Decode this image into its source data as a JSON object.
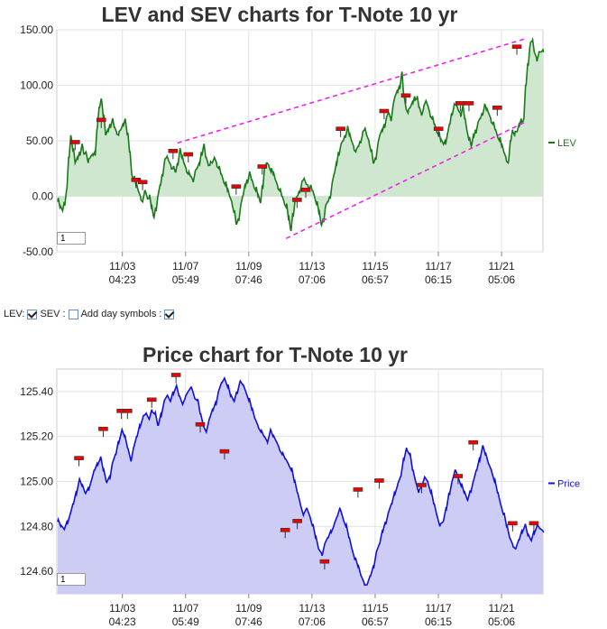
{
  "controls": {
    "lev_label": "LEV:",
    "sev_label": "SEV :",
    "add_day_label": "Add day symbols :",
    "lev_checked": true,
    "sev_checked": false,
    "add_day_checked": true
  },
  "chart_data": [
    {
      "type": "area",
      "title": "LEV and SEV charts for T-Note 10 yr",
      "ylim": [
        -50,
        150
      ],
      "yticks": [
        "-50.00",
        "0.00",
        "50.00",
        "100.00",
        "150.00"
      ],
      "xticks": [
        {
          "date": "11/03",
          "time": "04:23"
        },
        {
          "date": "11/07",
          "time": "05:49"
        },
        {
          "date": "11/09",
          "time": "07:46"
        },
        {
          "date": "11/13",
          "time": "07:06"
        },
        {
          "date": "11/15",
          "time": "06:57"
        },
        {
          "date": "11/17",
          "time": "06:15"
        },
        {
          "date": "11/21",
          "time": "05:06"
        }
      ],
      "series": [
        {
          "name": "LEV",
          "color": "#1a7a1a",
          "fill": "#cfe6cf",
          "values": [
            -5,
            -10,
            -12,
            -5,
            5,
            35,
            55,
            40,
            30,
            35,
            40,
            45,
            38,
            40,
            30,
            35,
            38,
            40,
            60,
            80,
            88,
            70,
            55,
            60,
            65,
            68,
            62,
            58,
            55,
            60,
            65,
            70,
            55,
            40,
            20,
            15,
            10,
            5,
            0,
            -5,
            5,
            0,
            -2,
            -10,
            -18,
            -10,
            0,
            10,
            20,
            30,
            35,
            32,
            28,
            25,
            22,
            30,
            40,
            35,
            30,
            25,
            20,
            18,
            15,
            20,
            25,
            30,
            40,
            45,
            35,
            30,
            28,
            30,
            35,
            30,
            25,
            20,
            15,
            10,
            5,
            0,
            -5,
            -15,
            -25,
            -20,
            -10,
            0,
            10,
            15,
            20,
            15,
            10,
            5,
            0,
            -5,
            10,
            25,
            30,
            28,
            22,
            20,
            15,
            10,
            5,
            0,
            -5,
            -10,
            -20,
            -30,
            -15,
            -5,
            0,
            5,
            10,
            15,
            12,
            10,
            8,
            5,
            0,
            -8,
            -15,
            -25,
            -20,
            -10,
            -5,
            0,
            10,
            20,
            30,
            40,
            45,
            50,
            55,
            60,
            55,
            50,
            45,
            40,
            45,
            50,
            55,
            60,
            55,
            50,
            40,
            30,
            35,
            45,
            55,
            60,
            65,
            70,
            75,
            70,
            80,
            90,
            95,
            100,
            110,
            90,
            80,
            75,
            80,
            85,
            90,
            88,
            80,
            75,
            78,
            85,
            82,
            75,
            70,
            65,
            60,
            55,
            50,
            48,
            50,
            55,
            65,
            75,
            80,
            82,
            78,
            75,
            80,
            70,
            60,
            50,
            45,
            55,
            60,
            65,
            70,
            75,
            80,
            78,
            75,
            70,
            65,
            60,
            55,
            50,
            45,
            40,
            35,
            30,
            50,
            60,
            55,
            58,
            65,
            70,
            68,
            100,
            120,
            135,
            140,
            130,
            125,
            128,
            130,
            132
          ]
        }
      ],
      "markers": [
        {
          "series_index": 8,
          "value": 48
        },
        {
          "series_index": 20,
          "value": 68
        },
        {
          "series_index": 36,
          "value": 14
        },
        {
          "series_index": 39,
          "value": 12
        },
        {
          "series_index": 53,
          "value": 40
        },
        {
          "series_index": 60,
          "value": 37
        },
        {
          "series_index": 82,
          "value": 8
        },
        {
          "series_index": 94,
          "value": 26
        },
        {
          "series_index": 110,
          "value": -4
        },
        {
          "series_index": 114,
          "value": 5
        },
        {
          "series_index": 130,
          "value": 60
        },
        {
          "series_index": 150,
          "value": 76
        },
        {
          "series_index": 160,
          "value": 90
        },
        {
          "series_index": 175,
          "value": 60
        },
        {
          "series_index": 185,
          "value": 83
        },
        {
          "series_index": 189,
          "value": 83
        },
        {
          "series_index": 202,
          "value": 79
        },
        {
          "series_index": 211,
          "value": 134
        }
      ],
      "trendlines": [
        {
          "from": {
            "index": 55,
            "value": 48
          },
          "to": {
            "index": 215,
            "value": 142
          }
        },
        {
          "from": {
            "index": 105,
            "value": -38
          },
          "to": {
            "index": 215,
            "value": 67
          }
        }
      ],
      "legend": "right",
      "zoom_value": "1"
    },
    {
      "type": "area",
      "title": "Price chart for T-Note 10 yr",
      "ylim": [
        124.5,
        125.5
      ],
      "yticks": [
        "124.60",
        "124.80",
        "125.00",
        "125.20",
        "125.40"
      ],
      "xticks": [
        {
          "date": "11/03",
          "time": "04:23"
        },
        {
          "date": "11/07",
          "time": "05:49"
        },
        {
          "date": "11/09",
          "time": "07:46"
        },
        {
          "date": "11/13",
          "time": "07:06"
        },
        {
          "date": "11/15",
          "time": "06:57"
        },
        {
          "date": "11/17",
          "time": "06:15"
        },
        {
          "date": "11/21",
          "time": "05:06"
        }
      ],
      "series": [
        {
          "name": "Price",
          "color": "#1111dd",
          "fill": "#ccccf4",
          "values": [
            124.82,
            124.8,
            124.79,
            124.82,
            124.85,
            124.9,
            124.95,
            125.0,
            124.98,
            124.95,
            124.97,
            125.0,
            125.05,
            125.08,
            125.1,
            125.05,
            125.0,
            125.02,
            125.08,
            125.12,
            125.18,
            125.22,
            125.2,
            125.15,
            125.1,
            125.15,
            125.2,
            125.25,
            125.28,
            125.3,
            125.28,
            125.32,
            125.3,
            125.25,
            125.3,
            125.35,
            125.38,
            125.36,
            125.4,
            125.42,
            125.38,
            125.35,
            125.37,
            125.4,
            125.42,
            125.38,
            125.36,
            125.3,
            125.25,
            125.22,
            125.28,
            125.32,
            125.35,
            125.4,
            125.44,
            125.46,
            125.42,
            125.38,
            125.36,
            125.4,
            125.44,
            125.43,
            125.4,
            125.36,
            125.32,
            125.28,
            125.25,
            125.22,
            125.2,
            125.18,
            125.22,
            125.2,
            125.18,
            125.15,
            125.12,
            125.1,
            125.08,
            125.05,
            125.0,
            124.95,
            124.9,
            124.85,
            124.88,
            124.85,
            124.8,
            124.75,
            124.7,
            124.68,
            124.72,
            124.75,
            124.78,
            124.8,
            124.84,
            124.88,
            124.84,
            124.8,
            124.75,
            124.7,
            124.65,
            124.62,
            124.58,
            124.55,
            124.54,
            124.58,
            124.62,
            124.68,
            124.72,
            124.78,
            124.82,
            124.86,
            124.9,
            124.95,
            124.98,
            125.02,
            125.1,
            125.15,
            125.12,
            125.05,
            125.0,
            124.95,
            124.98,
            125.02,
            125.0,
            124.95,
            124.9,
            124.85,
            124.8,
            124.82,
            124.88,
            124.95,
            125.0,
            125.05,
            125.02,
            124.98,
            124.95,
            124.92,
            124.96,
            125.0,
            125.05,
            125.1,
            125.15,
            125.12,
            125.08,
            125.05,
            125.0,
            124.95,
            124.9,
            124.85,
            124.8,
            124.75,
            124.72,
            124.7,
            124.74,
            124.78,
            124.8,
            124.76,
            124.74,
            124.78,
            124.8,
            124.79,
            124.78
          ]
        }
      ],
      "markers": [
        {
          "series_index": 7,
          "value": 125.1
        },
        {
          "series_index": 15,
          "value": 125.23
        },
        {
          "series_index": 21,
          "value": 125.31
        },
        {
          "series_index": 23,
          "value": 125.31
        },
        {
          "series_index": 31,
          "value": 125.36
        },
        {
          "series_index": 39,
          "value": 125.47
        },
        {
          "series_index": 47,
          "value": 125.25
        },
        {
          "series_index": 55,
          "value": 125.13
        },
        {
          "series_index": 75,
          "value": 124.78
        },
        {
          "series_index": 79,
          "value": 124.82
        },
        {
          "series_index": 88,
          "value": 124.64
        },
        {
          "series_index": 99,
          "value": 124.96
        },
        {
          "series_index": 106,
          "value": 125.0
        },
        {
          "series_index": 120,
          "value": 124.98
        },
        {
          "series_index": 132,
          "value": 125.02
        },
        {
          "series_index": 137,
          "value": 125.17
        },
        {
          "series_index": 150,
          "value": 124.81
        },
        {
          "series_index": 157,
          "value": 124.81
        }
      ],
      "legend": "right",
      "zoom_value": "1"
    }
  ]
}
